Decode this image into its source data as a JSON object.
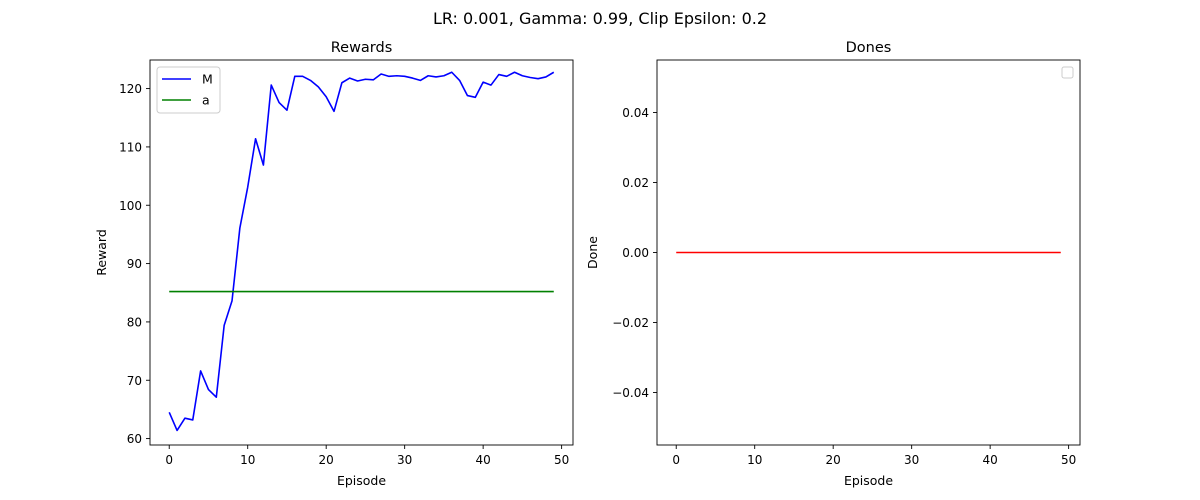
{
  "suptitle": "LR: 0.001, Gamma: 0.99, Clip Epsilon: 0.2",
  "chart_data": [
    {
      "type": "line",
      "title": "Rewards",
      "xlabel": "Episode",
      "ylabel": "Reward",
      "xlim": [
        -2.45,
        51.45
      ],
      "ylim": [
        58.9,
        124.9
      ],
      "xticks": [
        0,
        10,
        20,
        30,
        40,
        50
      ],
      "yticks": [
        60,
        70,
        80,
        90,
        100,
        110,
        120
      ],
      "grid": false,
      "legend": "upper-left",
      "series": [
        {
          "name": "M",
          "color": "#0000ff",
          "x": [
            0,
            1,
            2,
            3,
            4,
            5,
            6,
            7,
            8,
            9,
            10,
            11,
            12,
            13,
            14,
            15,
            16,
            17,
            18,
            19,
            20,
            21,
            22,
            23,
            24,
            25,
            26,
            27,
            28,
            29,
            30,
            31,
            32,
            33,
            34,
            35,
            36,
            37,
            38,
            39,
            40,
            41,
            42,
            43,
            44,
            45,
            46,
            47,
            48,
            49
          ],
          "values": [
            64.5,
            61.4,
            63.5,
            63.2,
            71.6,
            68.4,
            67.1,
            79.4,
            83.6,
            96.1,
            103.1,
            111.4,
            106.9,
            120.6,
            117.6,
            116.3,
            122.1,
            122.1,
            121.4,
            120.3,
            118.6,
            116.1,
            121.0,
            121.8,
            121.3,
            121.6,
            121.5,
            122.5,
            122.1,
            122.2,
            122.1,
            121.8,
            121.4,
            122.2,
            122.0,
            122.2,
            122.8,
            121.4,
            118.8,
            118.5,
            121.1,
            120.6,
            122.4,
            122.1,
            122.8,
            122.2,
            121.9,
            121.7,
            122.0,
            122.8
          ]
        },
        {
          "name": "a",
          "color": "#008000",
          "x": [
            0,
            49
          ],
          "values": [
            85.2,
            85.2
          ]
        }
      ]
    },
    {
      "type": "line",
      "title": "Dones",
      "xlabel": "Episode",
      "ylabel": "Done",
      "xlim": [
        -2.45,
        51.45
      ],
      "ylim": [
        -0.055,
        0.055
      ],
      "xticks": [
        0,
        10,
        20,
        30,
        40,
        50
      ],
      "yticks": [
        -0.04,
        -0.02,
        0.0,
        0.02,
        0.04
      ],
      "ytick_labels": [
        "−0.04",
        "−0.02",
        "0.00",
        "0.02",
        "0.04"
      ],
      "grid": false,
      "legend": "upper-right (empty)",
      "series": [
        {
          "color": "#ff0000",
          "x": [
            0,
            49
          ],
          "values": [
            0,
            0
          ]
        }
      ]
    }
  ]
}
